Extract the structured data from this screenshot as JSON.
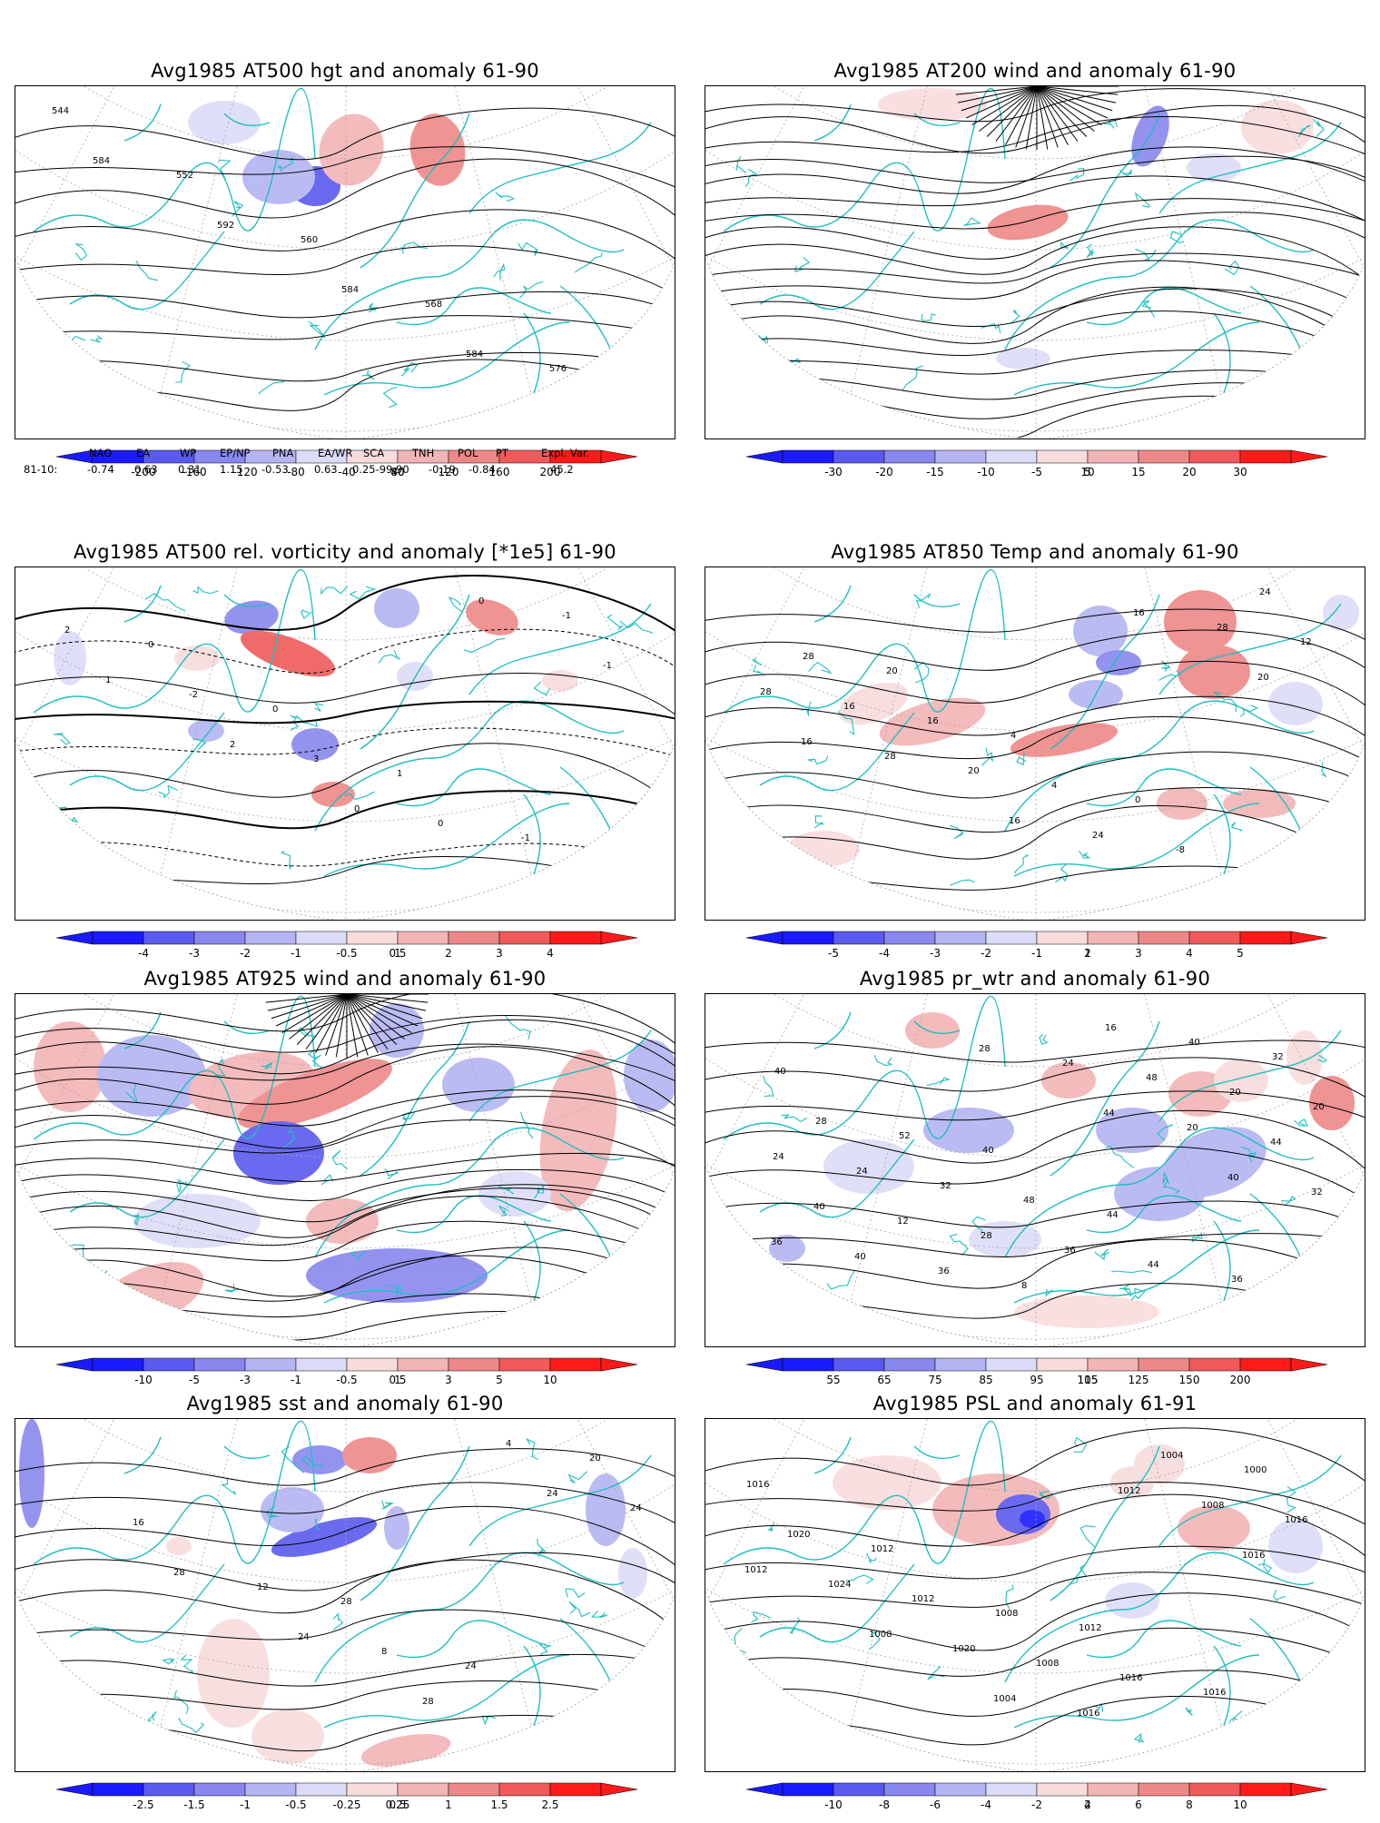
{
  "panels": [
    {
      "id": "p1",
      "title": "Avg1985 AT500 hgt and anomaly 61-90",
      "ticks": [
        "-200",
        "-160",
        "-120",
        "-80",
        "-40",
        "40",
        "80",
        "120",
        "160",
        "200"
      ],
      "contour_labels": [
        "544",
        "552",
        "560",
        "568",
        "576",
        "584",
        "592",
        "584",
        "584"
      ]
    },
    {
      "id": "p2",
      "title": "Avg1985 AT200 wind and anomaly 61-90",
      "ticks": [
        "-30",
        "-20",
        "-15",
        "-10",
        "-5",
        "5",
        "10",
        "15",
        "20",
        "30"
      ],
      "contour_labels": []
    },
    {
      "id": "p3",
      "title": "Avg1985 AT500 rel. vorticity and anomaly [*1e5] 61-90",
      "ticks": [
        "-4",
        "-3",
        "-2",
        "-1",
        "-0.5",
        "0.5",
        "1",
        "2",
        "3",
        "4"
      ],
      "contour_labels": [
        "0",
        "0",
        "1",
        "-1",
        "2",
        "-2",
        "3",
        "0",
        "-1",
        "1",
        "2",
        "0",
        "0",
        "-1"
      ]
    },
    {
      "id": "p4",
      "title": "Avg1985 AT850 Temp and anomaly 61-90",
      "ticks": [
        "-5",
        "-4",
        "-3",
        "-2",
        "-1",
        "1",
        "2",
        "3",
        "4",
        "5"
      ],
      "contour_labels": [
        "20",
        "4",
        "0",
        "24",
        "28",
        "16",
        "4",
        "-8",
        "12",
        "16",
        "20",
        "24",
        "28",
        "28",
        "28",
        "16",
        "16",
        "20",
        "16"
      ]
    },
    {
      "id": "p5",
      "title": "Avg1985 AT925 wind and anomaly 61-90",
      "ticks": [
        "-10",
        "-5",
        "-3",
        "-1",
        "-0.5",
        "0.5",
        "1",
        "3",
        "5",
        "10"
      ],
      "contour_labels": []
    },
    {
      "id": "p6",
      "title": "Avg1985 pr_wtr and anomaly 61-90",
      "ticks": [
        "55",
        "65",
        "75",
        "85",
        "95",
        "105",
        "115",
        "125",
        "150",
        "200"
      ],
      "contour_labels": [
        "40",
        "44",
        "36",
        "40",
        "52",
        "48",
        "44",
        "32",
        "28",
        "32",
        "36",
        "40",
        "20",
        "24",
        "28",
        "16",
        "20",
        "24",
        "12",
        "8",
        "48",
        "44",
        "40",
        "36",
        "24",
        "20",
        "32",
        "40",
        "28",
        "44",
        "40",
        "36"
      ]
    },
    {
      "id": "p7",
      "title": "Avg1985 sst and anomaly 61-90",
      "ticks": [
        "-2.5",
        "-1.5",
        "-1",
        "-0.5",
        "-0.25",
        "0.25",
        "0.5",
        "1",
        "1.5",
        "2.5"
      ],
      "contour_labels": [
        "28",
        "24",
        "20",
        "16",
        "12",
        "8",
        "4",
        "24",
        "28",
        "24",
        "28",
        "24"
      ]
    },
    {
      "id": "p8",
      "title": "Avg1985 PSL and anomaly 61-91",
      "ticks": [
        "-10",
        "-8",
        "-6",
        "-4",
        "-2",
        "2",
        "4",
        "6",
        "8",
        "10"
      ],
      "contour_labels": [
        "1012",
        "1016",
        "1016",
        "1012",
        "1008",
        "1016",
        "1000",
        "1020",
        "1012",
        "1008",
        "1004",
        "1016",
        "1024",
        "1020",
        "1016",
        "1008",
        "1012",
        "1008",
        "1004",
        "1012",
        "1016"
      ]
    }
  ],
  "teleconnection": {
    "headers": [
      "NAO",
      "EA",
      "WP",
      "EP/NP",
      "PNA",
      "EA/WR",
      "SCA",
      "TNH",
      "POL",
      "PT",
      "Expl. Var."
    ],
    "row_label": "81-10:",
    "values": [
      "-0.74",
      "0.63",
      "0.31",
      "1.15",
      "-0.53",
      "0.63",
      "0.25-99.90",
      "-0.19",
      "-0.84",
      "",
      "45.2"
    ]
  },
  "colors": {
    "land_outline": "#1fbfbf",
    "neg": [
      "#1a1aff",
      "#5a5aef",
      "#8888ee",
      "#b4b4f2",
      "#dcdcf8"
    ],
    "pos": [
      "#f8dcdc",
      "#f2b4b4",
      "#ee8888",
      "#ef5a5a",
      "#ff1a1a"
    ]
  }
}
